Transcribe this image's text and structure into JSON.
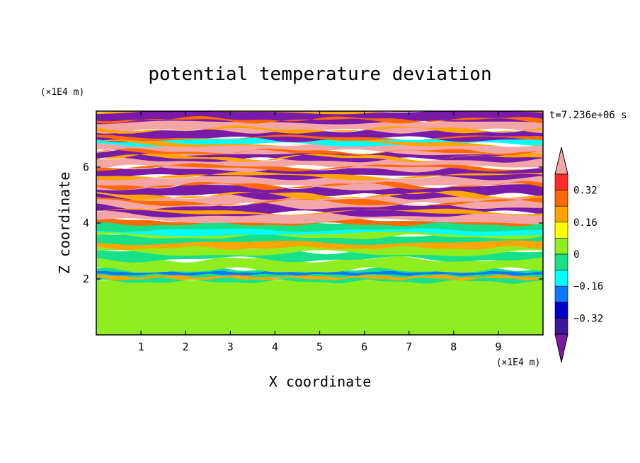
{
  "chart_data": {
    "type": "heatmap",
    "title": "potential temperature deviation",
    "xlabel": "X coordinate",
    "ylabel": "Z coordinate",
    "x_unit": "(×1E4 m)",
    "y_unit": "(×1E4 m)",
    "time_label": "t=7.236e+06 s",
    "xlim": [
      0,
      10
    ],
    "ylim": [
      0,
      8
    ],
    "x_ticks": [
      "1",
      "2",
      "3",
      "4",
      "5",
      "6",
      "7",
      "8",
      "9"
    ],
    "y_ticks": [
      "2",
      "4",
      "6"
    ],
    "colorbar": {
      "levels": [
        -0.48,
        -0.4,
        -0.32,
        -0.24,
        -0.16,
        -0.08,
        0,
        0.08,
        0.16,
        0.24,
        0.32,
        0.4,
        0.48
      ],
      "tick_labels": [
        "0.32",
        "0.16",
        "0",
        "−0.16",
        "−0.32"
      ],
      "tick_values": [
        0.32,
        0.16,
        0,
        -0.16,
        -0.32
      ],
      "colors_top_to_bottom": [
        "#f4a6a6",
        "#ff2a2a",
        "#ff6a00",
        "#ffa500",
        "#ffff00",
        "#90ee20",
        "#18e088",
        "#00ffff",
        "#0a78ff",
        "#0000cc",
        "#3a1a9a",
        "#7a1aa8"
      ]
    },
    "bands": [
      {
        "z_range": [
          0,
          1.95
        ],
        "dominant": 0.04,
        "secondary": 0.06,
        "note": "green turbulent layer"
      },
      {
        "z_range": [
          1.95,
          2.3
        ],
        "dominant": -0.16,
        "secondary": 0.32,
        "note": "mixed interface"
      },
      {
        "z_range": [
          2.3,
          4.0
        ],
        "dominant": -0.08,
        "secondary": 0.04,
        "note": "cyan/green stratified"
      },
      {
        "z_range": [
          4.0,
          8.0
        ],
        "dominant": 0.4,
        "secondary": -0.44,
        "note": "alternating pink/purple layers"
      }
    ]
  }
}
